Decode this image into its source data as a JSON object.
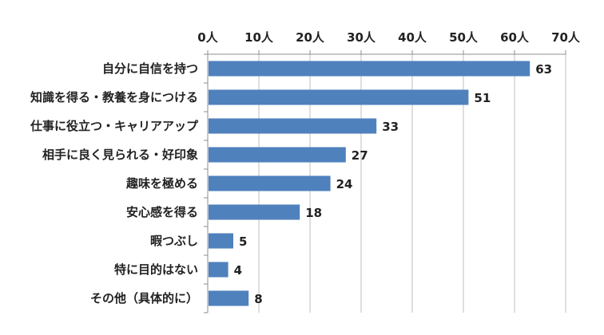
{
  "chart_data": {
    "type": "bar",
    "orientation": "horizontal",
    "categories": [
      "自分に自信を持つ",
      "知識を得る・教養を身につける",
      "仕事に役立つ・キャリアアップ",
      "相手に良く見られる・好印象",
      "趣味を極める",
      "安心感を得る",
      "暇つぶし",
      "特に目的はない",
      "その他（具体的に）"
    ],
    "values": [
      63,
      51,
      33,
      27,
      24,
      18,
      5,
      4,
      8
    ],
    "xlim": [
      0,
      70
    ],
    "x_ticks": [
      0,
      10,
      20,
      30,
      40,
      50,
      60,
      70
    ],
    "x_tick_labels": [
      "0人",
      "10人",
      "20人",
      "30人",
      "40人",
      "50人",
      "60人",
      "70人"
    ],
    "x_axis_position": "top",
    "grid": true,
    "bar_color": "#4F81BD",
    "title": "",
    "xlabel": "",
    "ylabel": ""
  }
}
